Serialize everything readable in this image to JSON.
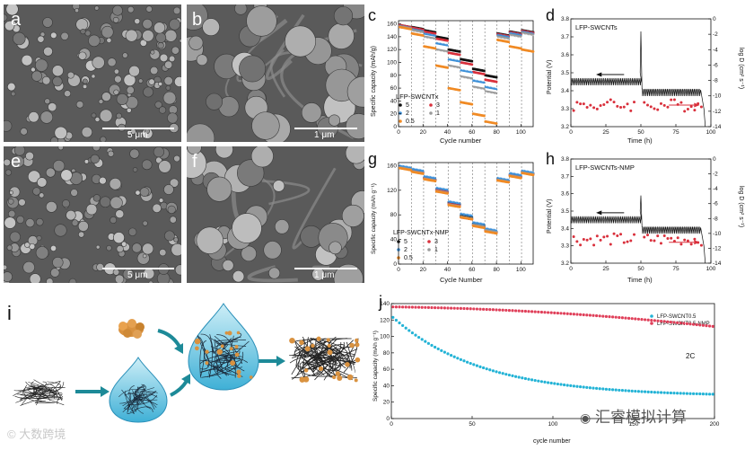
{
  "panels": {
    "a": {
      "letter": "a",
      "scale": "5 μm"
    },
    "b": {
      "letter": "b",
      "scale": "1 μm"
    },
    "e": {
      "letter": "e",
      "scale": "5 μm"
    },
    "f": {
      "letter": "f",
      "scale": "1 μm"
    },
    "i": {
      "letter": "i"
    }
  },
  "plots": {
    "c": {
      "letter": "c",
      "xlabel": "Cycle number",
      "ylabel": "Specific capacity (mAh/g)",
      "legend_title": "LFP-SWCNTx",
      "legend": [
        "5",
        "3",
        "2",
        "1",
        "0.5"
      ]
    },
    "d": {
      "letter": "d",
      "inner_title": "LFP-SWCNTs",
      "xlabel": "Time (h)",
      "ylabel": "Potential (V)",
      "y2label": "log D (cm² s⁻¹)"
    },
    "g": {
      "letter": "g",
      "xlabel": "Cycle Number",
      "ylabel": "Specific capacity (mAh g⁻¹)",
      "legend_title": "LFP-SWCNTx-NMP",
      "legend": [
        "5",
        "3",
        "2",
        "1",
        "0.5"
      ]
    },
    "h": {
      "letter": "h",
      "inner_title": "LFP-SWCNTs-NMP",
      "xlabel": "Time (h)",
      "ylabel": "Potential (V)",
      "y2label": "log D (cm² s⁻¹)"
    },
    "j": {
      "letter": "j",
      "xlabel": "cycle number",
      "ylabel": "Specific capacity (mAh g⁻¹)",
      "legend": [
        "LFP-SWCNT0.5",
        "LFP-SWCNT0.5-NMP"
      ],
      "rate_label": "2C"
    }
  },
  "watermarks": {
    "left": "大数跨境",
    "right": "汇睿模拟计算"
  },
  "colors": {
    "black": "#111111",
    "red": "#d9303c",
    "blue": "#3b8fd8",
    "cyan": "#23b3d6",
    "gray": "#9a9a9a",
    "orange": "#f08a24",
    "pink": "#e0405a"
  },
  "chart_data": [
    {
      "id": "c",
      "type": "scatter",
      "xlabel": "Cycle number",
      "ylabel": "Specific capacity (mAh/g)",
      "xlim": [
        0,
        110
      ],
      "ylim": [
        0,
        165
      ],
      "xticks": [
        0,
        20,
        40,
        60,
        80,
        100
      ],
      "yticks": [
        0,
        20,
        40,
        60,
        80,
        100,
        120,
        140,
        160
      ],
      "steps": [
        [
          1,
          10
        ],
        [
          11,
          20
        ],
        [
          21,
          30
        ],
        [
          31,
          40
        ],
        [
          41,
          50
        ],
        [
          51,
          60
        ],
        [
          61,
          70
        ],
        [
          71,
          80
        ],
        [
          81,
          90
        ],
        [
          91,
          100
        ],
        [
          101,
          110
        ]
      ],
      "series": [
        {
          "name": "5",
          "color": "#111111",
          "values": [
            158,
            155,
            150,
            140,
            120,
            105,
            90,
            80,
            145,
            148,
            150
          ]
        },
        {
          "name": "3",
          "color": "#d9303c",
          "values": [
            158,
            154,
            148,
            137,
            115,
            100,
            85,
            73,
            144,
            147,
            149
          ]
        },
        {
          "name": "2",
          "color": "#3b8fd8",
          "values": [
            157,
            152,
            145,
            130,
            105,
            88,
            72,
            62,
            143,
            146,
            148
          ]
        },
        {
          "name": "1",
          "color": "#9a9a9a",
          "values": [
            156,
            150,
            140,
            120,
            95,
            78,
            62,
            55,
            140,
            143,
            146
          ]
        },
        {
          "name": "0.5",
          "color": "#f08a24",
          "values": [
            155,
            145,
            125,
            95,
            60,
            38,
            20,
            8,
            135,
            125,
            120
          ]
        }
      ]
    },
    {
      "id": "d",
      "type": "line",
      "xlabel": "Time (h)",
      "ylabel": "Potential (V)",
      "xlim": [
        0,
        100
      ],
      "ylim": [
        3.2,
        3.8
      ],
      "y2lim": [
        -14,
        0
      ],
      "xticks": [
        0,
        25,
        50,
        75,
        100
      ],
      "yticks": [
        3.2,
        3.3,
        3.4,
        3.5,
        3.6,
        3.7,
        3.8
      ],
      "y2ticks": [
        0,
        -2,
        -4,
        -6,
        -8,
        -10,
        -12,
        -14
      ]
    },
    {
      "id": "g",
      "type": "scatter",
      "xlabel": "Cycle Number",
      "ylabel": "Specific capacity (mAh g⁻¹)",
      "xlim": [
        0,
        110
      ],
      "ylim": [
        0,
        165
      ],
      "xticks": [
        0,
        20,
        40,
        60,
        80,
        100
      ],
      "yticks": [
        0,
        40,
        80,
        120,
        160
      ],
      "steps": [
        [
          1,
          10
        ],
        [
          11,
          20
        ],
        [
          21,
          30
        ],
        [
          31,
          40
        ],
        [
          41,
          50
        ],
        [
          51,
          60
        ],
        [
          61,
          70
        ],
        [
          71,
          80
        ],
        [
          81,
          90
        ],
        [
          91,
          100
        ],
        [
          101,
          110
        ]
      ],
      "series": [
        {
          "name": "5",
          "color": "#111111",
          "values": [
            158,
            152,
            140,
            120,
            100,
            78,
            65,
            55,
            138,
            145,
            150
          ]
        },
        {
          "name": "3",
          "color": "#d9303c",
          "values": [
            158,
            152,
            140,
            120,
            98,
            76,
            63,
            54,
            138,
            145,
            150
          ]
        },
        {
          "name": "2",
          "color": "#3b8fd8",
          "values": [
            160,
            155,
            143,
            124,
            102,
            82,
            68,
            58,
            140,
            148,
            152
          ]
        },
        {
          "name": "1",
          "color": "#9a9a9a",
          "values": [
            157,
            151,
            139,
            119,
            97,
            77,
            64,
            55,
            137,
            144,
            149
          ]
        },
        {
          "name": "0.5",
          "color": "#f08a24",
          "values": [
            156,
            150,
            138,
            118,
            96,
            76,
            62,
            53,
            136,
            143,
            148
          ]
        }
      ]
    },
    {
      "id": "h",
      "type": "line",
      "xlabel": "Time (h)",
      "ylabel": "Potential (V)",
      "xlim": [
        0,
        100
      ],
      "ylim": [
        3.2,
        3.8
      ],
      "y2lim": [
        -14,
        0
      ],
      "xticks": [
        0,
        25,
        50,
        75,
        100
      ],
      "yticks": [
        3.2,
        3.3,
        3.4,
        3.5,
        3.6,
        3.7,
        3.8
      ],
      "y2ticks": [
        0,
        -2,
        -4,
        -6,
        -8,
        -10,
        -12,
        -14
      ]
    },
    {
      "id": "j",
      "type": "scatter",
      "xlabel": "cycle number",
      "ylabel": "Specific capacity (mAh g⁻¹)",
      "xlim": [
        0,
        200
      ],
      "ylim": [
        0,
        140
      ],
      "xticks": [
        0,
        50,
        100,
        150,
        200
      ],
      "yticks": [
        0,
        20,
        40,
        60,
        80,
        100,
        120,
        140
      ],
      "series": [
        {
          "name": "LFP-SWCNT0.5",
          "color": "#23b3d6",
          "start": 125,
          "end": 27,
          "decay": 55
        },
        {
          "name": "LFP-SWCNT0.5-NMP",
          "color": "#e0405a",
          "start": 136,
          "end": 112,
          "decay": 0
        }
      ]
    }
  ]
}
